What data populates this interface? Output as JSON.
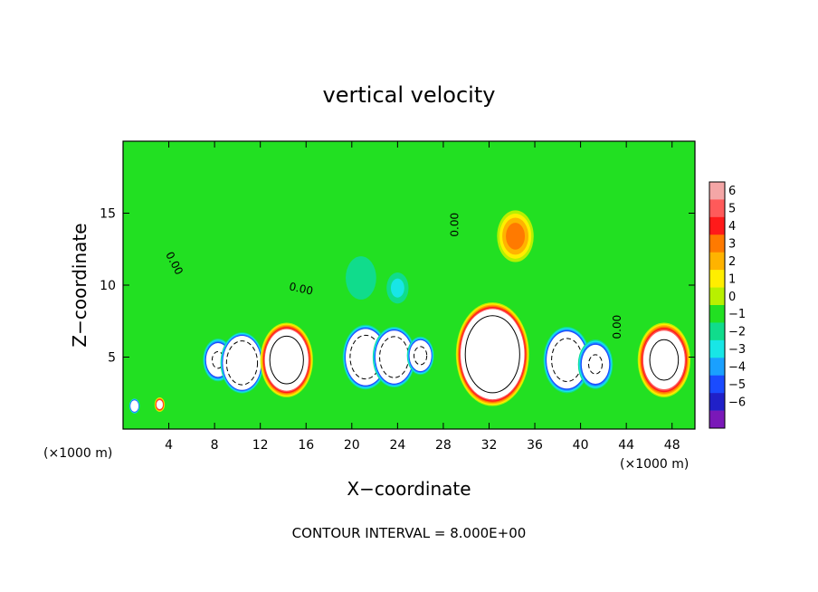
{
  "chart_data": {
    "type": "heatmap",
    "title": "vertical velocity",
    "xlabel": "X−coordinate",
    "ylabel": "Z−coordinate",
    "x_unit_left": "(×1000 m)",
    "x_unit_right": "(×1000 m)",
    "footer": "CONTOUR INTERVAL = 8.000E+00",
    "xlim": [
      0,
      50
    ],
    "ylim": [
      0,
      20
    ],
    "x_ticks": [
      4,
      8,
      12,
      16,
      20,
      24,
      28,
      32,
      36,
      40,
      44,
      48
    ],
    "x_tick_labels": [
      "4",
      "8",
      "12",
      "16",
      "20",
      "24",
      "28",
      "32",
      "36",
      "40",
      "44",
      "48"
    ],
    "y_ticks": [
      5,
      10,
      15
    ],
    "y_tick_labels": [
      "5",
      "10",
      "15"
    ],
    "colorbar": {
      "min": -6,
      "max": 6,
      "ticks": [
        6,
        5,
        4,
        3,
        2,
        1,
        0,
        -1,
        -2,
        -3,
        -4,
        -5,
        -6
      ],
      "tick_labels": [
        "6",
        "5",
        "4",
        "3",
        "2",
        "1",
        "0",
        "−1",
        "−2",
        "−3",
        "−4",
        "−5",
        "−6"
      ],
      "colors": [
        "#f4a6a6",
        "#ff5a5a",
        "#ff1a1a",
        "#ff7a00",
        "#ffb300",
        "#ffee00",
        "#b8f000",
        "#22e022",
        "#10dc8c",
        "#18e6e6",
        "#1aa0ff",
        "#1a4bff",
        "#2020c8",
        "#7a18b8"
      ],
      "above_max_color": "#ffffff",
      "below_min_color": "#ffffff"
    },
    "contour_labels": [
      {
        "text": "0.00",
        "x": 4.2,
        "y": 11.4,
        "rotation": 62
      },
      {
        "text": "0.00",
        "x": 15.5,
        "y": 9.5,
        "rotation": 12
      },
      {
        "text": "0.00",
        "x": 29.3,
        "y": 14.2,
        "rotation": -90
      },
      {
        "text": "0.00",
        "x": 43.5,
        "y": 7.1,
        "rotation": -90
      }
    ],
    "cells": [
      {
        "x": 1.0,
        "z": 1.6,
        "w": 0.16,
        "kind": "down",
        "peak": -11
      },
      {
        "x": 3.2,
        "z": 1.7,
        "w": 0.14,
        "kind": "up",
        "peak": 9
      },
      {
        "x": 8.3,
        "z": 4.8,
        "w": 0.45,
        "kind": "down",
        "peak": -12
      },
      {
        "x": 10.4,
        "z": 4.6,
        "w": 0.62,
        "kind": "down",
        "peak": -20
      },
      {
        "x": 14.3,
        "z": 4.8,
        "w": 0.72,
        "kind": "up",
        "peak": 18
      },
      {
        "x": 21.2,
        "z": 5.0,
        "w": 0.66,
        "kind": "down",
        "peak": -18
      },
      {
        "x": 23.7,
        "z": 5.0,
        "w": 0.62,
        "kind": "down",
        "peak": -18
      },
      {
        "x": 26.0,
        "z": 5.1,
        "w": 0.4,
        "kind": "down",
        "peak": -13
      },
      {
        "x": 32.3,
        "z": 5.2,
        "w": 1.0,
        "kind": "up",
        "peak": 24
      },
      {
        "x": 34.3,
        "z": 13.4,
        "w": 0.5,
        "kind": "up",
        "peak": 3.5
      },
      {
        "x": 38.8,
        "z": 4.8,
        "w": 0.68,
        "kind": "down",
        "peak": -17
      },
      {
        "x": 41.3,
        "z": 4.5,
        "w": 0.52,
        "kind": "down",
        "peak": -12
      },
      {
        "x": 47.3,
        "z": 4.8,
        "w": 0.72,
        "kind": "up",
        "peak": 15
      },
      {
        "x": 20.8,
        "z": 10.5,
        "w": 0.7,
        "kind": "down",
        "peak": -2.5
      },
      {
        "x": 24.0,
        "z": 9.8,
        "w": 0.45,
        "kind": "down",
        "peak": -3
      },
      {
        "x": 46.0,
        "z": 13.5,
        "w": 0.55,
        "kind": "down",
        "peak": -1.2
      }
    ]
  }
}
